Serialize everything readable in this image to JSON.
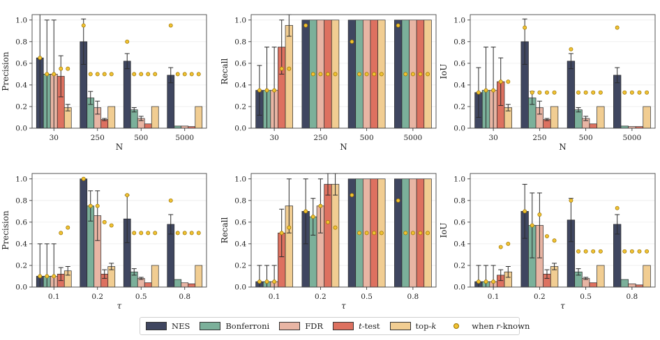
{
  "palette": {
    "NES": "#3f4660",
    "Bonferroni": "#7bb09a",
    "FDR": "#e8b5a4",
    "t-test": "#dd7160",
    "top-k": "#f1cd92",
    "marker": "#f1c232",
    "markerEdge": "#9a7300"
  },
  "legend": [
    {
      "key": "NES",
      "label": "NES",
      "kind": "bar"
    },
    {
      "key": "Bonferroni",
      "label": "Bonferroni",
      "kind": "bar"
    },
    {
      "key": "FDR",
      "label": "FDR",
      "kind": "bar"
    },
    {
      "key": "t-test",
      "label_italic": "t",
      "label_rest": "-test",
      "kind": "bar"
    },
    {
      "key": "top-k",
      "label_rest_pre": "top-",
      "label_italic_post": "k",
      "kind": "bar"
    },
    {
      "key": "marker",
      "label_pre": "when ",
      "label_italic_mid": "r",
      "label_post": "-known",
      "kind": "dot"
    }
  ],
  "chart_data": [
    {
      "type": "bar",
      "ylabel": "Precision",
      "xlabel": "N",
      "xlabel_italic": false,
      "categories": [
        "30",
        "250",
        "500",
        "5000"
      ],
      "ylim": [
        0,
        1.05
      ],
      "yticks": [
        "0.0",
        "0.2",
        "0.4",
        "0.6",
        "0.8",
        "1.0"
      ],
      "series": [
        {
          "name": "NES",
          "values": [
            0.65,
            0.8,
            0.62,
            0.49
          ],
          "err": [
            0.65,
            0.21,
            0.07,
            0.07
          ]
        },
        {
          "name": "Bonferroni",
          "values": [
            0.5,
            0.28,
            0.17,
            0.02
          ],
          "err": [
            0.5,
            0.06,
            0.02,
            0.0
          ]
        },
        {
          "name": "FDR",
          "values": [
            0.5,
            0.19,
            0.09,
            0.02
          ],
          "err": [
            0.5,
            0.06,
            0.02,
            0.0
          ]
        },
        {
          "name": "t-test",
          "values": [
            0.48,
            0.08,
            0.04,
            0.015
          ],
          "err": [
            0.19,
            0.01,
            0.0,
            0.0
          ]
        },
        {
          "name": "top-k",
          "values": [
            0.19,
            0.2,
            0.2,
            0.2
          ],
          "err": [
            0.03,
            0.0,
            0.0,
            0.0
          ]
        }
      ],
      "markers": [
        [
          0.65,
          0.5,
          0.5,
          0.55,
          0.55
        ],
        [
          0.95,
          0.5,
          0.5,
          0.5,
          0.5
        ],
        [
          0.8,
          0.5,
          0.5,
          0.5,
          0.5
        ],
        [
          0.95,
          0.5,
          0.5,
          0.5,
          0.5
        ]
      ]
    },
    {
      "type": "bar",
      "ylabel": "Recall",
      "xlabel": "N",
      "xlabel_italic": false,
      "categories": [
        "30",
        "250",
        "500",
        "5000"
      ],
      "ylim": [
        0,
        1.05
      ],
      "yticks": [
        "0.0",
        "0.2",
        "0.4",
        "0.6",
        "0.8",
        "1.0"
      ],
      "series": [
        {
          "name": "NES",
          "values": [
            0.35,
            1.0,
            1.0,
            1.0
          ],
          "err": [
            0.23,
            0,
            0,
            0
          ]
        },
        {
          "name": "Bonferroni",
          "values": [
            0.35,
            1.0,
            1.0,
            1.0
          ],
          "err": [
            0.4,
            0,
            0,
            0
          ]
        },
        {
          "name": "FDR",
          "values": [
            0.35,
            1.0,
            1.0,
            1.0
          ],
          "err": [
            0.4,
            0,
            0,
            0
          ]
        },
        {
          "name": "t-test",
          "values": [
            0.75,
            1.0,
            1.0,
            1.0
          ],
          "err": [
            0.25,
            0,
            0,
            0
          ]
        },
        {
          "name": "top-k",
          "values": [
            0.95,
            1.0,
            1.0,
            1.0
          ],
          "err": [
            0.1,
            0,
            0,
            0
          ]
        }
      ],
      "markers": [
        [
          0.35,
          0.35,
          0.35,
          0.55,
          0.55
        ],
        [
          0.95,
          0.5,
          0.5,
          0.5,
          0.5
        ],
        [
          0.8,
          0.5,
          0.5,
          0.5,
          0.5
        ],
        [
          0.95,
          0.5,
          0.5,
          0.5,
          0.5
        ]
      ]
    },
    {
      "type": "bar",
      "ylabel": "IoU",
      "xlabel": "N",
      "xlabel_italic": false,
      "categories": [
        "30",
        "250",
        "500",
        "5000"
      ],
      "ylim": [
        0,
        1.05
      ],
      "yticks": [
        "0.0",
        "0.2",
        "0.4",
        "0.6",
        "0.8",
        "1.0"
      ],
      "series": [
        {
          "name": "NES",
          "values": [
            0.33,
            0.8,
            0.62,
            0.49
          ],
          "err": [
            0.23,
            0.21,
            0.07,
            0.07
          ]
        },
        {
          "name": "Bonferroni",
          "values": [
            0.35,
            0.28,
            0.17,
            0.02
          ],
          "err": [
            0.4,
            0.06,
            0.02,
            0.0
          ]
        },
        {
          "name": "FDR",
          "values": [
            0.35,
            0.19,
            0.09,
            0.015
          ],
          "err": [
            0.4,
            0.06,
            0.02,
            0.0
          ]
        },
        {
          "name": "t-test",
          "values": [
            0.43,
            0.08,
            0.04,
            0.015
          ],
          "err": [
            0.22,
            0.01,
            0.0,
            0.0
          ]
        },
        {
          "name": "top-k",
          "values": [
            0.19,
            0.2,
            0.2,
            0.2
          ],
          "err": [
            0.03,
            0.0,
            0.0,
            0.0
          ]
        }
      ],
      "markers": [
        [
          0.33,
          0.35,
          0.35,
          0.43,
          0.43
        ],
        [
          0.93,
          0.33,
          0.33,
          0.33,
          0.33
        ],
        [
          0.73,
          0.33,
          0.33,
          0.33,
          0.33
        ],
        [
          0.93,
          0.33,
          0.33,
          0.33,
          0.33
        ]
      ]
    },
    {
      "type": "bar",
      "ylabel": "Precision",
      "xlabel": "τ",
      "xlabel_italic": true,
      "categories": [
        "0.1",
        "0.2",
        "0.5",
        "0.8"
      ],
      "ylim": [
        0,
        1.05
      ],
      "yticks": [
        "0.0",
        "0.2",
        "0.4",
        "0.6",
        "0.8",
        "1.0"
      ],
      "series": [
        {
          "name": "NES",
          "values": [
            0.1,
            1.0,
            0.63,
            0.58
          ],
          "err": [
            0.3,
            0.0,
            0.22,
            0.09
          ]
        },
        {
          "name": "Bonferroni",
          "values": [
            0.1,
            0.75,
            0.14,
            0.07
          ],
          "err": [
            0.3,
            0.14,
            0.03,
            0.0
          ]
        },
        {
          "name": "FDR",
          "values": [
            0.1,
            0.66,
            0.08,
            0.04
          ],
          "err": [
            0.3,
            0.23,
            0.01,
            0.0
          ]
        },
        {
          "name": "t-test",
          "values": [
            0.12,
            0.12,
            0.04,
            0.03
          ],
          "err": [
            0.06,
            0.04,
            0.0,
            0.0
          ]
        },
        {
          "name": "top-k",
          "values": [
            0.15,
            0.19,
            0.2,
            0.2
          ],
          "err": [
            0.04,
            0.03,
            0.0,
            0.0
          ]
        }
      ],
      "markers": [
        [
          0.1,
          0.1,
          0.1,
          0.5,
          0.55
        ],
        [
          1.0,
          0.75,
          0.75,
          0.6,
          0.57
        ],
        [
          0.85,
          0.5,
          0.5,
          0.5,
          0.5
        ],
        [
          0.8,
          0.5,
          0.5,
          0.5,
          0.5
        ]
      ]
    },
    {
      "type": "bar",
      "ylabel": "Recall",
      "xlabel": "τ",
      "xlabel_italic": true,
      "categories": [
        "0.1",
        "0.2",
        "0.5",
        "0.8"
      ],
      "ylim": [
        0,
        1.05
      ],
      "yticks": [
        "0.0",
        "0.2",
        "0.4",
        "0.6",
        "0.8",
        "1.0"
      ],
      "series": [
        {
          "name": "NES",
          "values": [
            0.05,
            0.7,
            1.0,
            1.0
          ],
          "err": [
            0.15,
            0.3,
            0,
            0
          ]
        },
        {
          "name": "Bonferroni",
          "values": [
            0.05,
            0.65,
            1.0,
            1.0
          ],
          "err": [
            0.15,
            0.17,
            0,
            0
          ]
        },
        {
          "name": "FDR",
          "values": [
            0.05,
            0.75,
            1.0,
            1.0
          ],
          "err": [
            0.15,
            0.25,
            0,
            0
          ]
        },
        {
          "name": "t-test",
          "values": [
            0.5,
            0.95,
            1.0,
            1.0
          ],
          "err": [
            0.22,
            0.1,
            0,
            0
          ]
        },
        {
          "name": "top-k",
          "values": [
            0.75,
            0.95,
            1.0,
            1.0
          ],
          "err": [
            0.25,
            0.1,
            0,
            0
          ]
        }
      ],
      "markers": [
        [
          0.05,
          0.05,
          0.05,
          0.5,
          0.55
        ],
        [
          0.7,
          0.65,
          0.75,
          0.6,
          0.55
        ],
        [
          0.85,
          0.5,
          0.5,
          0.5,
          0.5
        ],
        [
          0.8,
          0.5,
          0.5,
          0.5,
          0.5
        ]
      ]
    },
    {
      "type": "bar",
      "ylabel": "IoU",
      "xlabel": "τ",
      "xlabel_italic": true,
      "categories": [
        "0.1",
        "0.2",
        "0.5",
        "0.8"
      ],
      "ylim": [
        0,
        1.05
      ],
      "yticks": [
        "0.0",
        "0.2",
        "0.4",
        "0.6",
        "0.8",
        "1.0"
      ],
      "series": [
        {
          "name": "NES",
          "values": [
            0.05,
            0.7,
            0.62,
            0.58
          ],
          "err": [
            0.15,
            0.25,
            0.2,
            0.09
          ]
        },
        {
          "name": "Bonferroni",
          "values": [
            0.05,
            0.57,
            0.14,
            0.07
          ],
          "err": [
            0.15,
            0.3,
            0.03,
            0.0
          ]
        },
        {
          "name": "FDR",
          "values": [
            0.05,
            0.57,
            0.08,
            0.03
          ],
          "err": [
            0.15,
            0.3,
            0.01,
            0.0
          ]
        },
        {
          "name": "t-test",
          "values": [
            0.11,
            0.12,
            0.04,
            0.02
          ],
          "err": [
            0.05,
            0.04,
            0.0,
            0.0
          ]
        },
        {
          "name": "top-k",
          "values": [
            0.14,
            0.19,
            0.2,
            0.2
          ],
          "err": [
            0.05,
            0.03,
            0.0,
            0.0
          ]
        }
      ],
      "markers": [
        [
          0.05,
          0.05,
          0.05,
          0.37,
          0.4
        ],
        [
          0.7,
          0.57,
          0.67,
          0.47,
          0.43
        ],
        [
          0.8,
          0.33,
          0.33,
          0.33,
          0.33
        ],
        [
          0.73,
          0.33,
          0.33,
          0.33,
          0.33
        ]
      ]
    }
  ]
}
